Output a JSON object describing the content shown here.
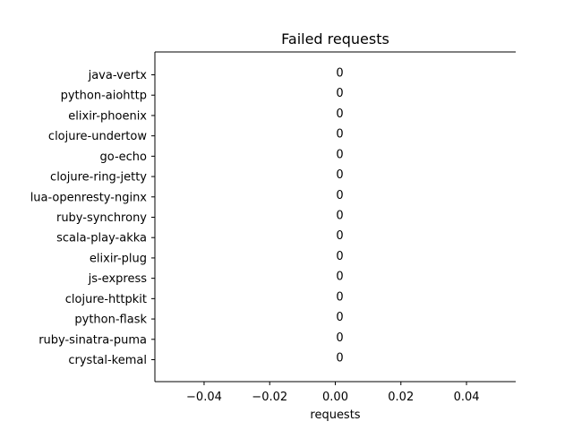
{
  "chart_data": {
    "type": "bar",
    "orientation": "horizontal",
    "title": "Failed requests",
    "xlabel": "requests",
    "ylabel": "",
    "categories": [
      "java-vertx",
      "python-aiohttp",
      "elixir-phoenix",
      "clojure-undertow",
      "go-echo",
      "clojure-ring-jetty",
      "lua-openresty-nginx",
      "ruby-synchrony",
      "scala-play-akka",
      "elixir-plug",
      "js-express",
      "clojure-httpkit",
      "python-flask",
      "ruby-sinatra-puma",
      "crystal-kemal"
    ],
    "values": [
      0,
      0,
      0,
      0,
      0,
      0,
      0,
      0,
      0,
      0,
      0,
      0,
      0,
      0,
      0
    ],
    "data_labels": [
      "0",
      "0",
      "0",
      "0",
      "0",
      "0",
      "0",
      "0",
      "0",
      "0",
      "0",
      "0",
      "0",
      "0",
      "0"
    ],
    "xlim": [
      -0.055,
      0.055
    ],
    "xticks": [
      -0.04,
      -0.02,
      0.0,
      0.02,
      0.04
    ],
    "xtick_labels": [
      "−0.04",
      "−0.02",
      "0.00",
      "0.02",
      "0.04"
    ],
    "grid": false,
    "legend": "none"
  }
}
